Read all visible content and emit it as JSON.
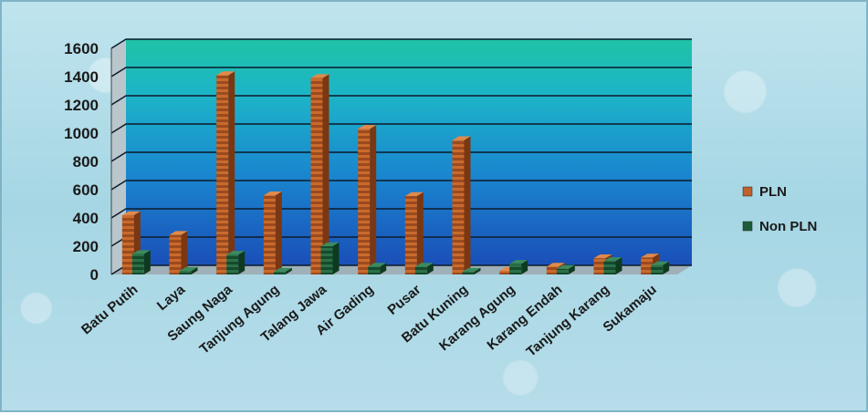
{
  "chart_data": {
    "type": "bar",
    "categories": [
      "Batu Putih",
      "Laya",
      "Saung Naga",
      "Tanjung Agung",
      "Talang Jawa",
      "Air Gading",
      "Pusar",
      "Batu Kuning",
      "Karang Agung",
      "Karang Endah",
      "Tanjung Karang",
      "Sukamaju"
    ],
    "series": [
      {
        "name": "PLN",
        "color": "#c0602a",
        "values": [
          420,
          280,
          1410,
          560,
          1390,
          1030,
          555,
          950,
          25,
          55,
          115,
          120
        ]
      },
      {
        "name": "Non PLN",
        "color": "#1f5c3a",
        "values": [
          145,
          25,
          140,
          20,
          200,
          55,
          55,
          20,
          75,
          40,
          95,
          65
        ]
      }
    ],
    "yticks": [
      0,
      200,
      400,
      600,
      800,
      1000,
      1200,
      1400,
      1600
    ],
    "ylim": [
      0,
      1600
    ],
    "legend_position": "right",
    "plot_background": [
      "#19b3a4",
      "#1a6ec4"
    ]
  }
}
